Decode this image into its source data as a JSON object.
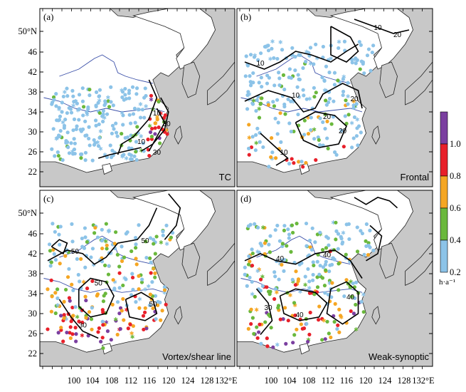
{
  "figure": {
    "panels": [
      {
        "id": "a",
        "label": "(a)",
        "name": "TC",
        "contour_labels": [
          "10",
          "10",
          "30",
          "30"
        ],
        "intensity": 0.55
      },
      {
        "id": "b",
        "label": "(b)",
        "name": "Frontal",
        "contour_labels": [
          "10",
          "10",
          "20",
          "20",
          "20",
          "10",
          "20",
          "10"
        ],
        "intensity": 0.75
      },
      {
        "id": "c",
        "label": "(c)",
        "name": "Vortex/shear line",
        "contour_labels": [
          "50",
          "50",
          "50",
          "50",
          "30"
        ],
        "intensity": 1.0
      },
      {
        "id": "d",
        "label": "(d)",
        "name": "Weak-synoptic",
        "contour_labels": [
          "40",
          "40",
          "40",
          "40",
          "30"
        ],
        "intensity": 1.0
      }
    ],
    "lat_ticks": [
      "50°N",
      "46",
      "42",
      "38",
      "34",
      "30",
      "26",
      "22"
    ],
    "lon_ticks": [
      "100",
      "104",
      "108",
      "112",
      "116",
      "120",
      "124",
      "128",
      "132°E"
    ],
    "colorbar": {
      "ticks": [
        "1.0",
        "0.8",
        "0.6",
        "0.4",
        "0.2"
      ],
      "unit": "h·a⁻¹",
      "colors": [
        "#7b3fa0",
        "#e8202a",
        "#f5a623",
        "#6ab83c",
        "#8cc3e8"
      ]
    }
  }
}
